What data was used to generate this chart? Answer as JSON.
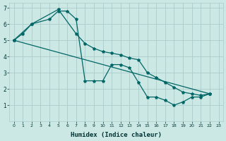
{
  "xlabel": "Humidex (Indice chaleur)",
  "bg_color": "#cce8e4",
  "grid_color": "#aacccc",
  "line_color": "#006666",
  "xlim": [
    -0.5,
    23.5
  ],
  "ylim": [
    0,
    7.3
  ],
  "yticks": [
    1,
    2,
    3,
    4,
    5,
    6,
    7
  ],
  "xticks": [
    0,
    1,
    2,
    3,
    4,
    5,
    6,
    7,
    8,
    9,
    10,
    11,
    12,
    13,
    14,
    15,
    16,
    17,
    18,
    19,
    20,
    21,
    22,
    23
  ],
  "line1_x": [
    0,
    1,
    2,
    4,
    5,
    6,
    7,
    8,
    9,
    10,
    11,
    12,
    13,
    14,
    15,
    16,
    17,
    18,
    19,
    20,
    21,
    22
  ],
  "line1_y": [
    5.0,
    5.4,
    6.0,
    6.3,
    6.8,
    6.8,
    6.3,
    2.5,
    2.5,
    2.5,
    3.5,
    3.5,
    3.3,
    2.4,
    1.5,
    1.5,
    1.3,
    1.0,
    1.2,
    1.5,
    1.5,
    1.7
  ],
  "line2_x": [
    0,
    2,
    5,
    7,
    8,
    9,
    10,
    11,
    12,
    13,
    14,
    15,
    16,
    17,
    18,
    19,
    20,
    21,
    22
  ],
  "line2_y": [
    5.0,
    6.0,
    6.9,
    5.4,
    4.8,
    4.5,
    4.3,
    4.2,
    4.1,
    3.9,
    3.8,
    3.0,
    2.7,
    2.4,
    2.1,
    1.8,
    1.7,
    1.6,
    1.7
  ],
  "line3_x": [
    0,
    22
  ],
  "line3_y": [
    5.0,
    1.7
  ]
}
